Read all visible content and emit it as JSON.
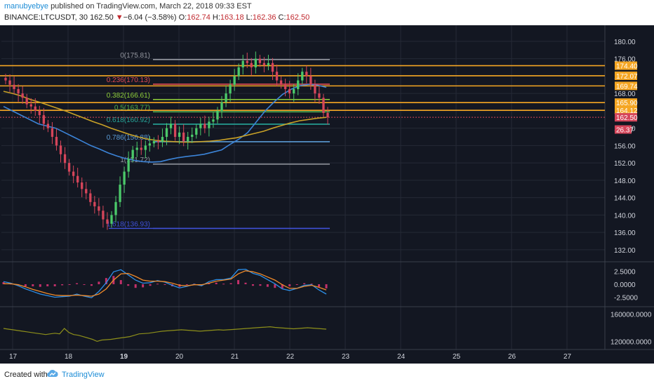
{
  "header": {
    "username": "manubyebye",
    "published_text": "published on TradingView.com, March 22, 2018 09:33 EST",
    "symbol": "BINANCE:LTCUSDT, 30",
    "last": "162.50",
    "arrow": "▼",
    "change": "−6.04 (−3.58%)",
    "open_label": "O:",
    "open": "162.74",
    "high_label": "H:",
    "high": "163.18",
    "low_label": "L:",
    "low": "162.36",
    "close_label": "C:",
    "close": "162.50"
  },
  "footer": {
    "created_with": "Created with",
    "brand": "TradingView",
    "logo_icon": "tradingview-cloud-icon"
  },
  "colors": {
    "background": "#131722",
    "grid": "#252a36",
    "axis_text": "#d1d4dc",
    "bull": "#4bc96a",
    "bear": "#d5455a",
    "orange": "#f5a623",
    "blue_ma": "#3c84d8",
    "gold_ma": "#c9a227",
    "macd": "#2d8fe8",
    "signal": "#f08a2a",
    "hist": "#c2306a",
    "volume_line": "#8d8f1a",
    "price_badge": "#d5455a"
  },
  "chart_data": {
    "type": "candlestick",
    "price_axis": {
      "ticks": [
        180,
        176,
        172,
        168,
        164,
        160,
        156,
        152,
        148,
        144,
        140,
        136,
        132
      ],
      "ylim": [
        129.4,
        183.7
      ]
    },
    "time_axis": {
      "labels": [
        "17",
        "18",
        "19",
        "20",
        "21",
        "22",
        "23",
        "24",
        "25",
        "26",
        "27"
      ],
      "bold": [
        "19"
      ]
    },
    "fib_levels": [
      {
        "ratio": "0",
        "price": 175.81,
        "label": "0(175.81)",
        "color": "#9598a1"
      },
      {
        "ratio": "0.236",
        "price": 170.13,
        "label": "0.236(170.13)",
        "color": "#e04b52"
      },
      {
        "ratio": "0.382",
        "price": 166.61,
        "label": "0.382(166.61)",
        "color": "#8fcf3a"
      },
      {
        "ratio": "0.5",
        "price": 163.77,
        "label": "0.5(163.77)",
        "color": "#4caf50"
      },
      {
        "ratio": "0.618",
        "price": 160.92,
        "label": "0.618(160.92)",
        "color": "#26a69a"
      },
      {
        "ratio": "0.786",
        "price": 156.88,
        "label": "0.786(156.88)",
        "color": "#5b9bd5"
      },
      {
        "ratio": "1",
        "price": 151.72,
        "label": "1(151.72)",
        "color": "#9598a1"
      },
      {
        "ratio": "1.618",
        "price": 136.93,
        "label": "1.618(136.93)",
        "color": "#3f51d8"
      }
    ],
    "horizontal_lines": [
      174.4,
      172.07,
      169.74,
      165.9,
      164.12
    ],
    "price_badges": [
      {
        "label": "174.40",
        "price": 174.4,
        "color": "#f5a623"
      },
      {
        "label": "172.07",
        "price": 172.07,
        "color": "#f5a623"
      },
      {
        "label": "169.74",
        "price": 169.74,
        "color": "#f5a623"
      },
      {
        "label": "165.90",
        "price": 165.9,
        "color": "#f5a623"
      },
      {
        "label": "164.12",
        "price": 164.12,
        "color": "#f5a623"
      },
      {
        "label": "162.50",
        "price": 162.5,
        "color": "#d5455a"
      },
      {
        "label": "26.37",
        "price": 159.7,
        "color": "#d5455a"
      }
    ],
    "candles_close": [
      171,
      170,
      169,
      168,
      167,
      165.5,
      165,
      164,
      163,
      161,
      160,
      158,
      156,
      154,
      152,
      150,
      149,
      147.5,
      146,
      145,
      143,
      142,
      141,
      139,
      138,
      140,
      143,
      147,
      150,
      153,
      155,
      155.5,
      155,
      156,
      156.5,
      157,
      156.8,
      158,
      160,
      161,
      158,
      159,
      157,
      158,
      158.5,
      160,
      161,
      160,
      161.5,
      162,
      164,
      166,
      168,
      170,
      172,
      174,
      175.5,
      175,
      174,
      176,
      175,
      174.5,
      175,
      173,
      171,
      170,
      169,
      168,
      169,
      171,
      173,
      172,
      170,
      168,
      167,
      163.5,
      162.5
    ],
    "blue_ma": [
      165,
      164,
      163,
      162,
      161,
      160.5,
      160,
      159,
      158,
      157,
      156,
      155.2,
      154.3,
      153.6,
      153,
      152.6,
      152.3,
      152.2,
      152.3,
      152.8,
      153.2,
      153.5,
      153.7,
      154,
      154.5,
      155,
      156.3,
      157.5,
      159,
      161.5,
      164,
      166,
      167.8,
      169,
      169.8,
      170.1,
      169.9,
      169.4
    ],
    "gold_ma": [
      168.5,
      168,
      167.4,
      166.6,
      166,
      165.3,
      164.6,
      163.9,
      163.1,
      162.3,
      161.5,
      160.8,
      160,
      159.3,
      158.6,
      158,
      157.5,
      157.2,
      157,
      156.9,
      156.8,
      156.8,
      156.9,
      157,
      157.2,
      157.5,
      157.8,
      158.3,
      158.8,
      159.3,
      160,
      160.6,
      161.2,
      161.7,
      162,
      162.3,
      162.5
    ],
    "macd_axis": {
      "ticks": [
        "2.5000",
        "0.0000",
        "-2.5000"
      ],
      "ylim": [
        -4.2,
        4.2
      ]
    },
    "macd": [
      0.5,
      0.2,
      -0.3,
      -0.9,
      -1.4,
      -1.9,
      -2.2,
      -2.5,
      -2.4,
      -2.3,
      -1.9,
      -2.3,
      -2.6,
      -1.4,
      0.3,
      2.4,
      2.8,
      1.8,
      0.8,
      0.2,
      0.3,
      0.7,
      0.4,
      -0.2,
      -0.7,
      -0.4,
      0,
      -0.3,
      0.5,
      0.9,
      0.9,
      1.2,
      2.8,
      2.9,
      2.1,
      1.7,
      0.9,
      0.1,
      -0.9,
      -1.2,
      -0.8,
      -0.2,
      -0.1,
      -1.1,
      -1.9
    ],
    "signal": [
      0.1,
      0.1,
      -0.1,
      -0.5,
      -1,
      -1.4,
      -1.8,
      -2.1,
      -2.2,
      -2.2,
      -2.1,
      -2.2,
      -2.3,
      -1.9,
      -0.9,
      0.8,
      2,
      2.1,
      1.5,
      0.8,
      0.6,
      0.6,
      0.5,
      0.2,
      -0.2,
      -0.3,
      -0.1,
      -0.1,
      0.2,
      0.6,
      0.8,
      1,
      2,
      2.6,
      2.4,
      2,
      1.4,
      0.8,
      -0.1,
      -0.8,
      -0.8,
      -0.4,
      -0.2,
      -0.6,
      -1.1
    ],
    "volume_axis": {
      "ticks": [
        "160000.0000",
        "120000.0000"
      ],
      "ylim": [
        108000,
        170000
      ]
    },
    "volume": [
      139000,
      138000,
      137000,
      136000,
      135000,
      134000,
      133000,
      132000,
      131000,
      130000,
      131000,
      132000,
      131000,
      139000,
      133000,
      130000,
      129000,
      127000,
      125000,
      123000,
      120000,
      122000,
      122500,
      123000,
      124000,
      125000,
      126000,
      127000,
      129000,
      131000,
      131500,
      132000,
      133000,
      134000,
      135000,
      135500,
      136000,
      136500,
      137000,
      136500,
      136000,
      135500,
      135000,
      135500,
      136000,
      136500,
      137000,
      136500,
      137000,
      137500,
      138000,
      138500,
      139000,
      139500,
      140000,
      140500,
      141000,
      141500,
      140500,
      140000,
      139500,
      139000,
      138500,
      139000,
      139500,
      140000,
      139500,
      139000,
      138500,
      138000
    ]
  }
}
